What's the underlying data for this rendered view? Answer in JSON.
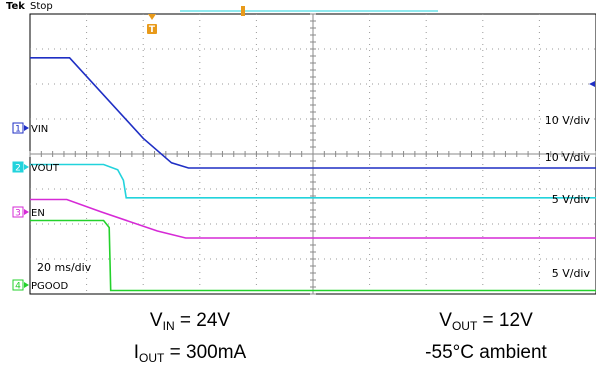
{
  "header": {
    "brand": "Tek",
    "state": "Stop"
  },
  "timebase": "20 ms/div",
  "channels": [
    {
      "id": "1",
      "name": "VIN",
      "scale": "10 V/div",
      "color": "#1f2fc4"
    },
    {
      "id": "2",
      "name": "VOUT",
      "scale": "10 V/div",
      "color": "#22d3dc"
    },
    {
      "id": "3",
      "name": "EN",
      "scale": "5 V/div",
      "color": "#d62ad6"
    },
    {
      "id": "4",
      "name": "PGOOD",
      "scale": "5 V/div",
      "color": "#23d12b"
    }
  ],
  "trigger_marker": "T",
  "caption": {
    "vin": {
      "sym": "V",
      "sub": "IN",
      "val": " = 24V"
    },
    "iout": {
      "sym": "I",
      "sub": "OUT",
      "val": " = 300mA"
    },
    "vout": {
      "sym": "V",
      "sub": "OUT",
      "val": " = 12V"
    },
    "ambient": "-55°C ambient"
  },
  "chart_data": {
    "type": "line",
    "x_unit": "ms",
    "xlim": [
      0,
      200
    ],
    "ylim_divs": [
      0,
      8
    ],
    "grid": true,
    "series": [
      {
        "name": "VIN",
        "scale": "10 V/div",
        "points": [
          [
            0,
            6.75
          ],
          [
            14,
            6.75
          ],
          [
            40,
            4.45
          ],
          [
            50,
            3.75
          ],
          [
            56,
            3.6
          ],
          [
            200,
            3.6
          ]
        ]
      },
      {
        "name": "VOUT",
        "scale": "10 V/div",
        "points": [
          [
            0,
            3.7
          ],
          [
            26,
            3.7
          ],
          [
            31,
            3.55
          ],
          [
            33,
            3.25
          ],
          [
            34,
            2.75
          ],
          [
            200,
            2.75
          ]
        ]
      },
      {
        "name": "EN",
        "scale": "5 V/div",
        "points": [
          [
            0,
            2.7
          ],
          [
            13,
            2.7
          ],
          [
            25,
            2.35
          ],
          [
            45,
            1.8
          ],
          [
            55,
            1.6
          ],
          [
            200,
            1.6
          ]
        ]
      },
      {
        "name": "PGOOD",
        "scale": "5 V/div",
        "points": [
          [
            0,
            2.1
          ],
          [
            26,
            2.1
          ],
          [
            28,
            1.9
          ],
          [
            28.5,
            0.1
          ],
          [
            200,
            0.1
          ]
        ]
      }
    ]
  }
}
